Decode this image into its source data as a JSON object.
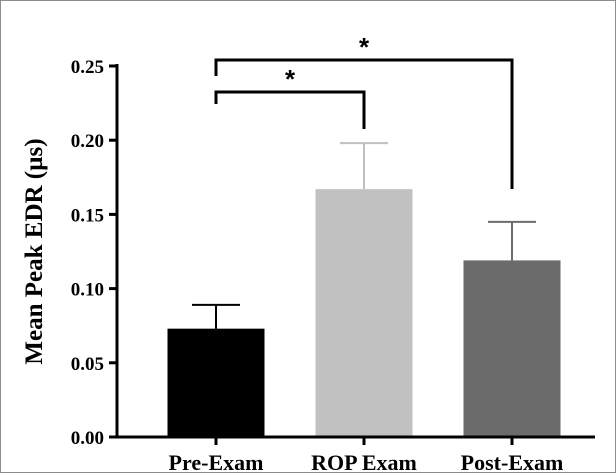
{
  "chart_data": {
    "type": "bar",
    "title": "",
    "xlabel": "",
    "ylabel": "Mean Peak EDR (µs)",
    "ylim": [
      0,
      0.25
    ],
    "yticks": [
      "0.00",
      "0.05",
      "0.10",
      "0.15",
      "0.20",
      "0.25"
    ],
    "categories": [
      "Pre-Exam",
      "ROP Exam",
      "Post-Exam"
    ],
    "values": [
      0.073,
      0.167,
      0.119
    ],
    "errors": [
      0.016,
      0.031,
      0.026
    ],
    "colors": [
      "#000000",
      "#c0c0c0",
      "#6b6b6b"
    ],
    "grid": false,
    "legend": "none",
    "annotations": [
      {
        "from": "Pre-Exam",
        "to": "ROP Exam",
        "label": "*"
      },
      {
        "from": "Pre-Exam",
        "to": "Post-Exam",
        "label": "*"
      }
    ]
  }
}
